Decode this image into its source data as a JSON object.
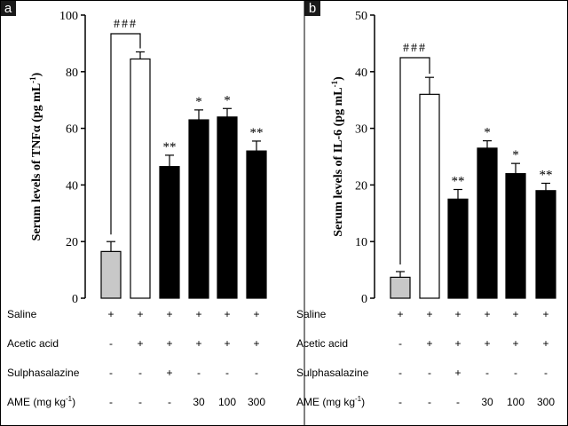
{
  "chart_data": [
    {
      "panel_label": "a",
      "type": "bar",
      "ylabel": "Serum levels of TNFα (pg mL",
      "ylabel_sup": "-1",
      "ylabel_close": ")",
      "ylim": [
        0,
        100
      ],
      "yticks": [
        "0",
        "20",
        "40",
        "60",
        "80",
        "100"
      ],
      "values": [
        16.5,
        84.5,
        46.5,
        63.0,
        64.0,
        52.0
      ],
      "errors": [
        3.5,
        2.5,
        4.0,
        3.5,
        3.0,
        3.5
      ],
      "bar_fills": [
        "#c8c8c8",
        "#ffffff",
        "#000000",
        "#000000",
        "#000000",
        "#000000"
      ],
      "marks": [
        "",
        "",
        "**",
        "*",
        "*",
        "**"
      ],
      "bracket_label": "###",
      "rows": [
        {
          "label": "Saline",
          "cells": [
            "+",
            "+",
            "+",
            "+",
            "+",
            "+"
          ]
        },
        {
          "label": "Acetic acid",
          "cells": [
            "-",
            "+",
            "+",
            "+",
            "+",
            "+"
          ]
        },
        {
          "label": "Sulphasalazine",
          "cells": [
            "-",
            "-",
            "+",
            "-",
            "-",
            "-"
          ]
        },
        {
          "label": "AME (mg kg",
          "label_sup": "-1",
          "label_close": ")",
          "cells": [
            "-",
            "-",
            "-",
            "30",
            "100",
            "300"
          ]
        }
      ]
    },
    {
      "panel_label": "b",
      "type": "bar",
      "ylabel": "Serum levels of IL-6 (pg mL",
      "ylabel_sup": "-1",
      "ylabel_close": ")",
      "ylim": [
        0,
        50
      ],
      "yticks": [
        "0",
        "10",
        "20",
        "30",
        "40",
        "50"
      ],
      "values": [
        3.7,
        36.0,
        17.5,
        26.5,
        22.0,
        19.0
      ],
      "errors": [
        1.0,
        3.0,
        1.7,
        1.3,
        1.8,
        1.3
      ],
      "bar_fills": [
        "#c8c8c8",
        "#ffffff",
        "#000000",
        "#000000",
        "#000000",
        "#000000"
      ],
      "marks": [
        "",
        "",
        "**",
        "*",
        "*",
        "**"
      ],
      "bracket_label": "###",
      "rows": [
        {
          "label": "Saline",
          "cells": [
            "+",
            "+",
            "+",
            "+",
            "+",
            "+"
          ]
        },
        {
          "label": "Acetic acid",
          "cells": [
            "-",
            "+",
            "+",
            "+",
            "+",
            "+"
          ]
        },
        {
          "label": "Sulphasalazine",
          "cells": [
            "-",
            "-",
            "+",
            "-",
            "-",
            "-"
          ]
        },
        {
          "label": "AME (mg kg",
          "label_sup": "-1",
          "label_close": ")",
          "cells": [
            "-",
            "-",
            "-",
            "30",
            "100",
            "300"
          ]
        }
      ]
    }
  ]
}
